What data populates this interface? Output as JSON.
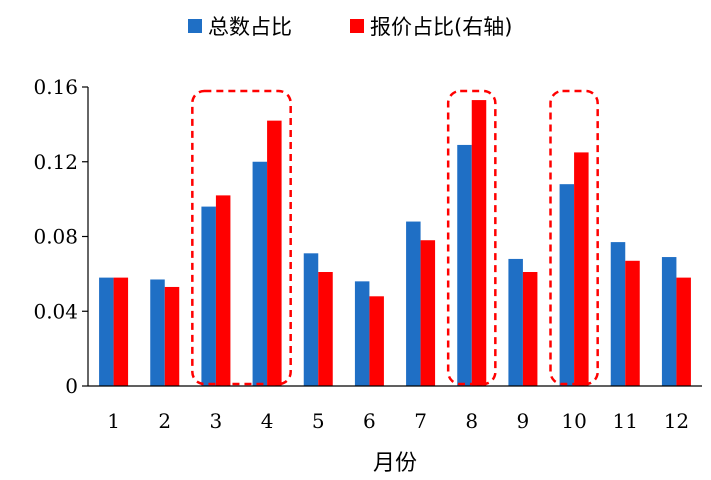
{
  "chart_data": {
    "type": "bar",
    "categories": [
      "1",
      "2",
      "3",
      "4",
      "5",
      "6",
      "7",
      "8",
      "9",
      "10",
      "11",
      "12"
    ],
    "series": [
      {
        "name": "总数占比",
        "color": "#1F6FC5",
        "values": [
          0.058,
          0.057,
          0.096,
          0.12,
          0.071,
          0.056,
          0.088,
          0.129,
          0.068,
          0.108,
          0.077,
          0.069
        ]
      },
      {
        "name": "报价占比(右轴)",
        "color": "#FF0000",
        "values": [
          0.058,
          0.053,
          0.102,
          0.142,
          0.061,
          0.048,
          0.078,
          0.153,
          0.061,
          0.125,
          0.067,
          0.058
        ]
      }
    ],
    "xlabel": "月份",
    "ylabel": "",
    "ylim": [
      0,
      0.16
    ],
    "yticks": [
      "0",
      "0.04",
      "0.08",
      "0.12",
      "0.16"
    ],
    "legend_position": "top-center",
    "grid": false,
    "highlights": [
      {
        "categories": [
          "3",
          "4"
        ],
        "style": "dashed",
        "color": "#FF0000"
      },
      {
        "categories": [
          "8"
        ],
        "style": "dashed",
        "color": "#FF0000"
      },
      {
        "categories": [
          "10"
        ],
        "style": "dashed",
        "color": "#FF0000"
      }
    ]
  }
}
